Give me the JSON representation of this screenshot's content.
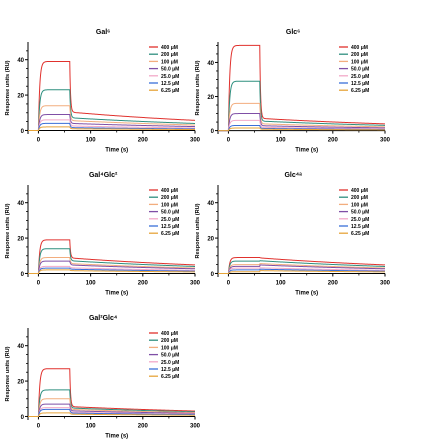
{
  "chart_data": [
    {
      "type": "line",
      "title": "Gal⁶",
      "xlabel": "Time (s)",
      "ylabel": "Response units (RU)",
      "xlim": [
        -20,
        300
      ],
      "ylim": [
        -2,
        50
      ],
      "xticks": [
        0,
        100,
        200,
        300
      ],
      "yticks": [
        0,
        20,
        40
      ],
      "legend": "top-right",
      "series": [
        {
          "name": "400 μM",
          "color": "#e0312d",
          "plateau": 39,
          "end": 6.5
        },
        {
          "name": "200 μM",
          "color": "#2e8f7f",
          "plateau": 23,
          "end": 4.5
        },
        {
          "name": "100 μM",
          "color": "#f2ad7e",
          "plateau": 14,
          "end": 3.5
        },
        {
          "name": "50.0 μM",
          "color": "#7f4fa6",
          "plateau": 9,
          "end": 2.5
        },
        {
          "name": "25.0 μM",
          "color": "#f3a9c9",
          "plateau": 6,
          "end": 1.6
        },
        {
          "name": "12.5 μM",
          "color": "#3a6fd8",
          "plateau": 4,
          "end": 1.0
        },
        {
          "name": "6.25 μM",
          "color": "#e6a43a",
          "plateau": 2,
          "end": 0.6
        }
      ]
    },
    {
      "type": "line",
      "title": "Glc⁶",
      "xlabel": "Time (s)",
      "ylabel": "Response units (RU)",
      "xlim": [
        -20,
        300
      ],
      "ylim": [
        -2,
        52
      ],
      "xticks": [
        0,
        100,
        200,
        300
      ],
      "yticks": [
        0,
        20,
        40
      ],
      "legend": "top-right",
      "series": [
        {
          "name": "400 μM",
          "color": "#e0312d",
          "plateau": 50,
          "end": 4.5
        },
        {
          "name": "200 μM",
          "color": "#2e8f7f",
          "plateau": 29,
          "end": 3.5
        },
        {
          "name": "100 μM",
          "color": "#f2ad7e",
          "plateau": 16,
          "end": 2.5
        },
        {
          "name": "50.0 μM",
          "color": "#7f4fa6",
          "plateau": 10,
          "end": 1.8
        },
        {
          "name": "25.0 μM",
          "color": "#f3a9c9",
          "plateau": 6,
          "end": 1.2
        },
        {
          "name": "12.5 μM",
          "color": "#3a6fd8",
          "plateau": 3,
          "end": 0.8
        },
        {
          "name": "6.25 μM",
          "color": "#e6a43a",
          "plateau": 1.5,
          "end": 0.5
        }
      ]
    },
    {
      "type": "line",
      "title": "Gal⁴Glc²",
      "xlabel": "Time (s)",
      "ylabel": "Response units (RU)",
      "xlim": [
        -20,
        300
      ],
      "ylim": [
        -2,
        50
      ],
      "xticks": [
        0,
        100,
        200,
        300
      ],
      "yticks": [
        0,
        20,
        40
      ],
      "legend": "top-right",
      "series": [
        {
          "name": "400 μM",
          "color": "#e0312d",
          "plateau": 19,
          "end": 5.5
        },
        {
          "name": "200 μM",
          "color": "#2e8f7f",
          "plateau": 14,
          "end": 4.5
        },
        {
          "name": "100 μM",
          "color": "#f2ad7e",
          "plateau": 9,
          "end": 3.5
        },
        {
          "name": "50.0 μM",
          "color": "#7f4fa6",
          "plateau": 7,
          "end": 3.0
        },
        {
          "name": "25.0 μM",
          "color": "#f3a9c9",
          "plateau": 4,
          "end": 2.0
        },
        {
          "name": "12.5 μM",
          "color": "#3a6fd8",
          "plateau": 3,
          "end": 1.5
        },
        {
          "name": "6.25 μM",
          "color": "#e6a43a",
          "plateau": 2,
          "end": 1.0
        }
      ]
    },
    {
      "type": "line",
      "title": "Glc⁴ᵃ",
      "xlabel": "Time (s)",
      "ylabel": "Response units (RU)",
      "xlim": [
        -20,
        300
      ],
      "ylim": [
        -2,
        50
      ],
      "xticks": [
        0,
        100,
        200,
        300
      ],
      "yticks": [
        0,
        20,
        40
      ],
      "legend": "top-right",
      "series": [
        {
          "name": "400 μM",
          "color": "#e0312d",
          "plateau": 9,
          "end": 5.5
        },
        {
          "name": "200 μM",
          "color": "#2e8f7f",
          "plateau": 7,
          "end": 4.5
        },
        {
          "name": "100 μM",
          "color": "#f2ad7e",
          "plateau": 5,
          "end": 3.5
        },
        {
          "name": "50.0 μM",
          "color": "#7f4fa6",
          "plateau": 4,
          "end": 3.0
        },
        {
          "name": "25.0 μM",
          "color": "#f3a9c9",
          "plateau": 3,
          "end": 2.0
        },
        {
          "name": "12.5 μM",
          "color": "#3a6fd8",
          "plateau": 2,
          "end": 1.5
        },
        {
          "name": "6.25 μM",
          "color": "#e6a43a",
          "plateau": 1,
          "end": 1.0
        }
      ]
    },
    {
      "type": "line",
      "title": "Gal²Glc⁴",
      "xlabel": "Time (s)",
      "ylabel": "Response units (RU)",
      "xlim": [
        -20,
        300
      ],
      "ylim": [
        -2,
        50
      ],
      "xticks": [
        0,
        100,
        200,
        300
      ],
      "yticks": [
        0,
        20,
        40
      ],
      "legend": "top-right",
      "series": [
        {
          "name": "400 μM",
          "color": "#e0312d",
          "plateau": 27,
          "end": 3.5
        },
        {
          "name": "200 μM",
          "color": "#2e8f7f",
          "plateau": 15,
          "end": 3.0
        },
        {
          "name": "100 μM",
          "color": "#f2ad7e",
          "plateau": 10,
          "end": 2.5
        },
        {
          "name": "50.0 μM",
          "color": "#7f4fa6",
          "plateau": 7,
          "end": 2.0
        },
        {
          "name": "25.0 μM",
          "color": "#f3a9c9",
          "plateau": 5,
          "end": 1.5
        },
        {
          "name": "12.5 μM",
          "color": "#3a6fd8",
          "plateau": 4,
          "end": 1.2
        },
        {
          "name": "6.25 μM",
          "color": "#e6a43a",
          "plateau": 2,
          "end": 0.8
        }
      ]
    }
  ]
}
